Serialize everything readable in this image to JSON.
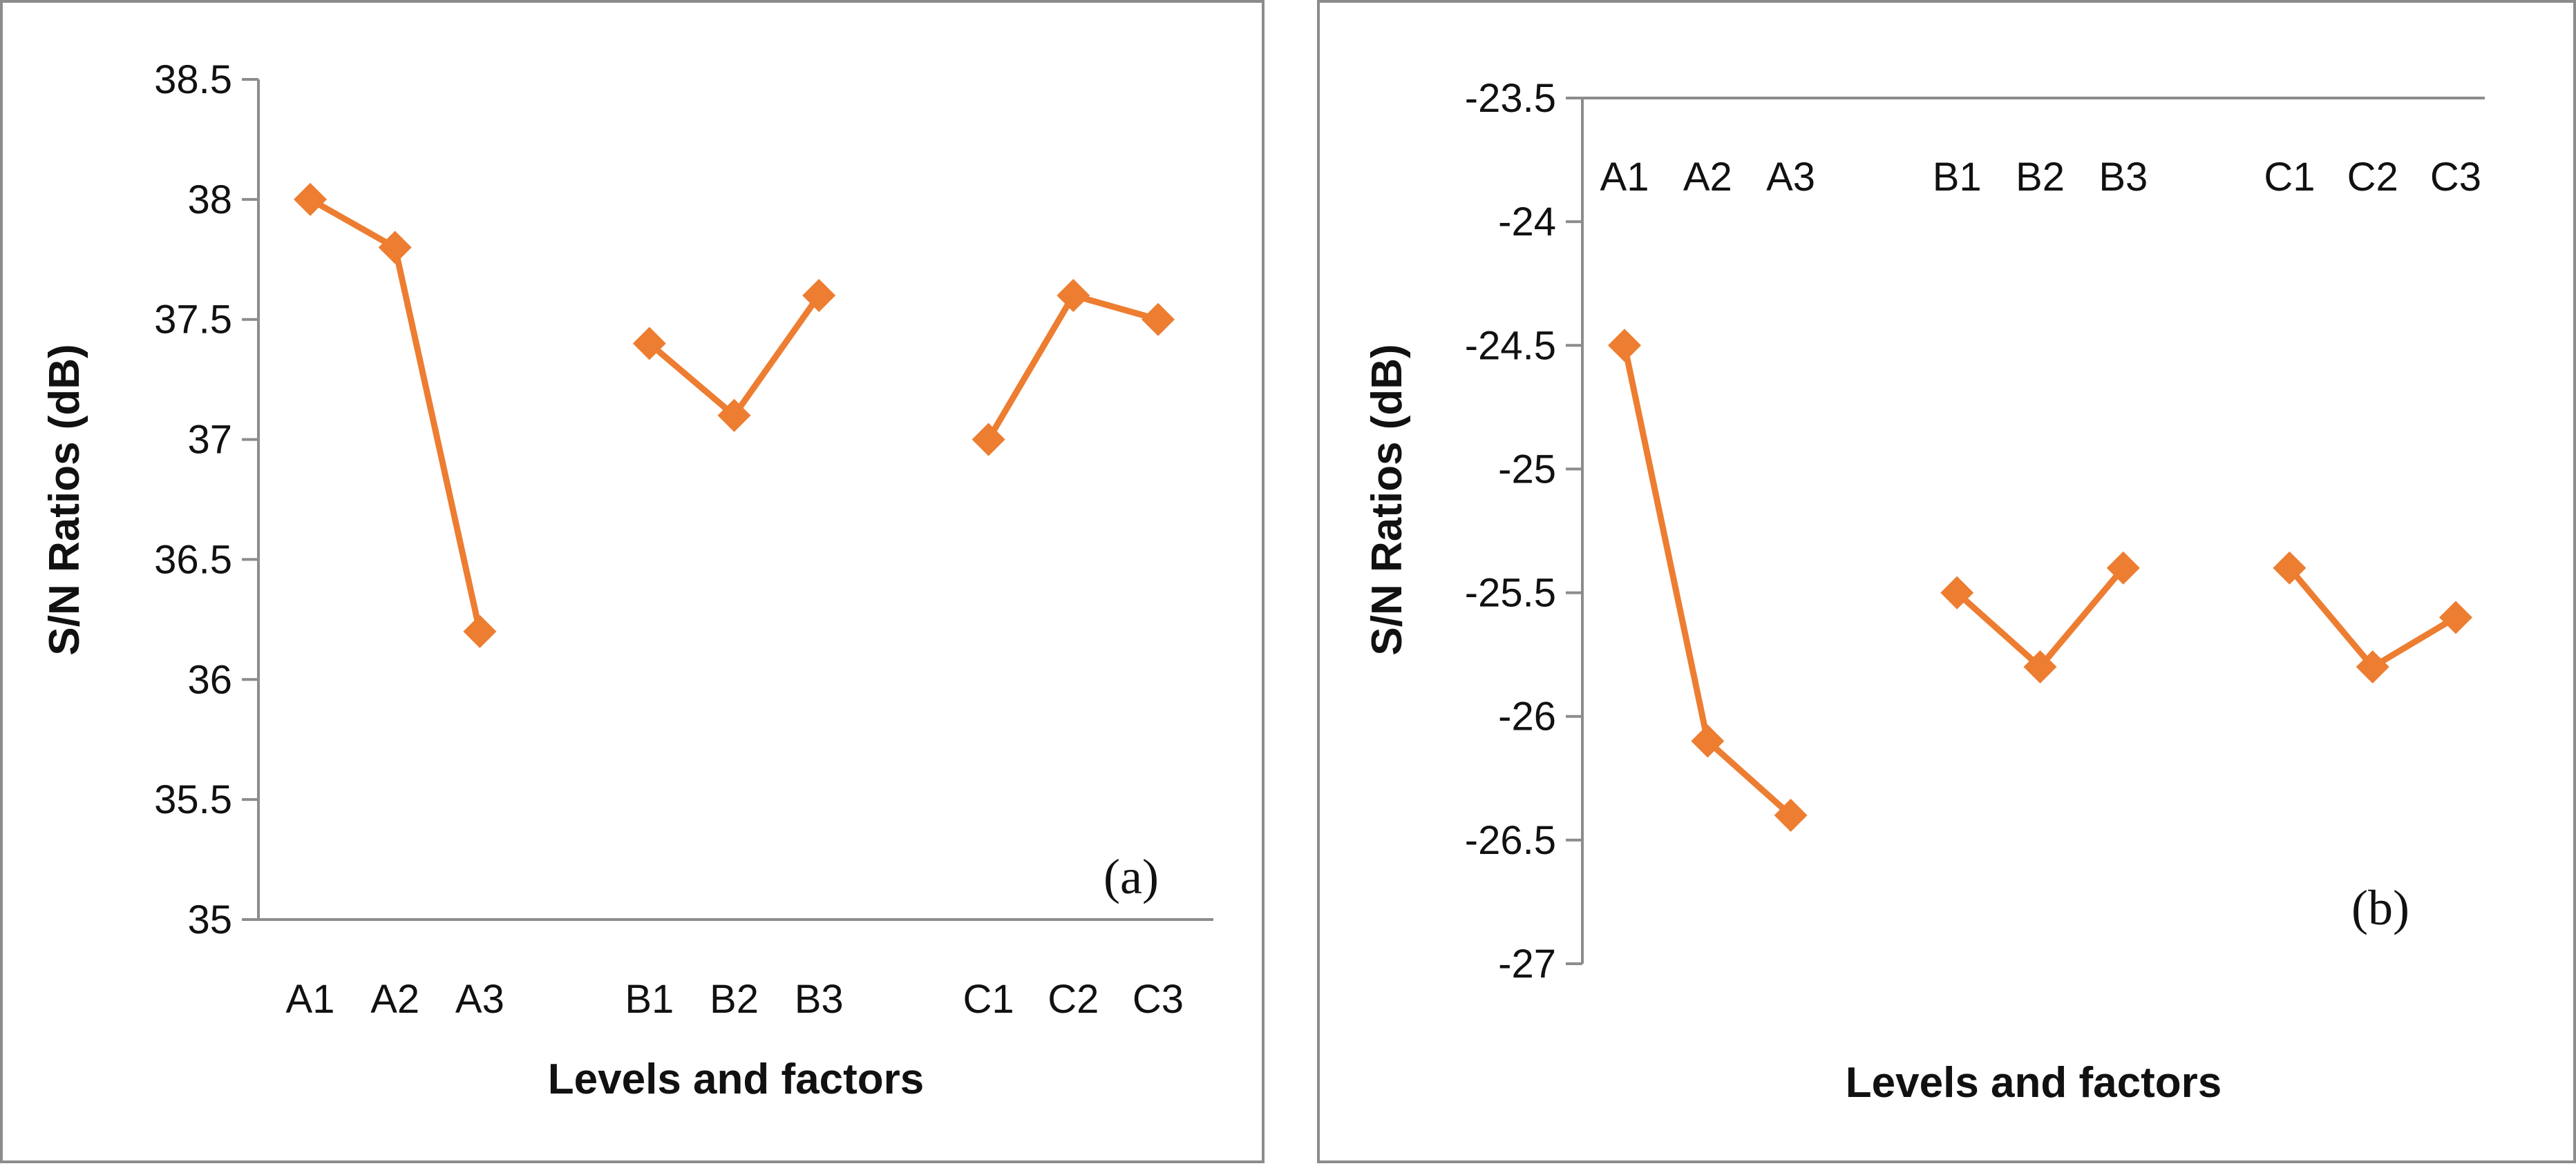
{
  "chart_data": [
    {
      "type": "line",
      "panel_label": "(a)",
      "xlabel": "Levels and factors",
      "ylabel": "S/N Ratios (dB)",
      "ylim": [
        35,
        38.5
      ],
      "ytick_values": [
        35,
        35.5,
        36,
        36.5,
        37,
        37.5,
        38,
        38.5
      ],
      "ytick_labels": [
        "35",
        "35.5",
        "36",
        "36.5",
        "37",
        "37.5",
        "38",
        "38.5"
      ],
      "x_axis_position": "bottom",
      "categories": [
        "A1",
        "A2",
        "A3",
        "",
        "B1",
        "B2",
        "B3",
        "",
        "C1",
        "C2",
        "C3"
      ],
      "groups": [
        {
          "name": "A",
          "points": [
            {
              "x": "A1",
              "y": 38.0
            },
            {
              "x": "A2",
              "y": 37.8
            },
            {
              "x": "A3",
              "y": 36.2
            }
          ]
        },
        {
          "name": "B",
          "points": [
            {
              "x": "B1",
              "y": 37.4
            },
            {
              "x": "B2",
              "y": 37.1
            },
            {
              "x": "B3",
              "y": 37.6
            }
          ]
        },
        {
          "name": "C",
          "points": [
            {
              "x": "C1",
              "y": 37.0
            },
            {
              "x": "C2",
              "y": 37.6
            },
            {
              "x": "C3",
              "y": 37.5
            }
          ]
        }
      ],
      "color": "#ED7D31",
      "grid": false
    },
    {
      "type": "line",
      "panel_label": "(b)",
      "xlabel": "Levels and factors",
      "ylabel": "S/N Ratios (dB)",
      "ylim": [
        -27,
        -23.5
      ],
      "ytick_values": [
        -27,
        -26.5,
        -26,
        -25.5,
        -25,
        -24.5,
        -24,
        -23.5
      ],
      "ytick_labels": [
        "-27",
        "-26.5",
        "-26",
        "-25.5",
        "-25",
        "-24.5",
        "-24",
        "-23.5"
      ],
      "x_axis_position": "top",
      "categories": [
        "A1",
        "A2",
        "A3",
        "",
        "B1",
        "B2",
        "B3",
        "",
        "C1",
        "C2",
        "C3"
      ],
      "groups": [
        {
          "name": "A",
          "points": [
            {
              "x": "A1",
              "y": -24.5
            },
            {
              "x": "A2",
              "y": -26.1
            },
            {
              "x": "A3",
              "y": -26.4
            }
          ]
        },
        {
          "name": "B",
          "points": [
            {
              "x": "B1",
              "y": -25.5
            },
            {
              "x": "B2",
              "y": -25.8
            },
            {
              "x": "B3",
              "y": -25.4
            }
          ]
        },
        {
          "name": "C",
          "points": [
            {
              "x": "C1",
              "y": -25.4
            },
            {
              "x": "C2",
              "y": -25.8
            },
            {
              "x": "C3",
              "y": -25.6
            }
          ]
        }
      ],
      "color": "#ED7D31",
      "grid": false
    }
  ]
}
